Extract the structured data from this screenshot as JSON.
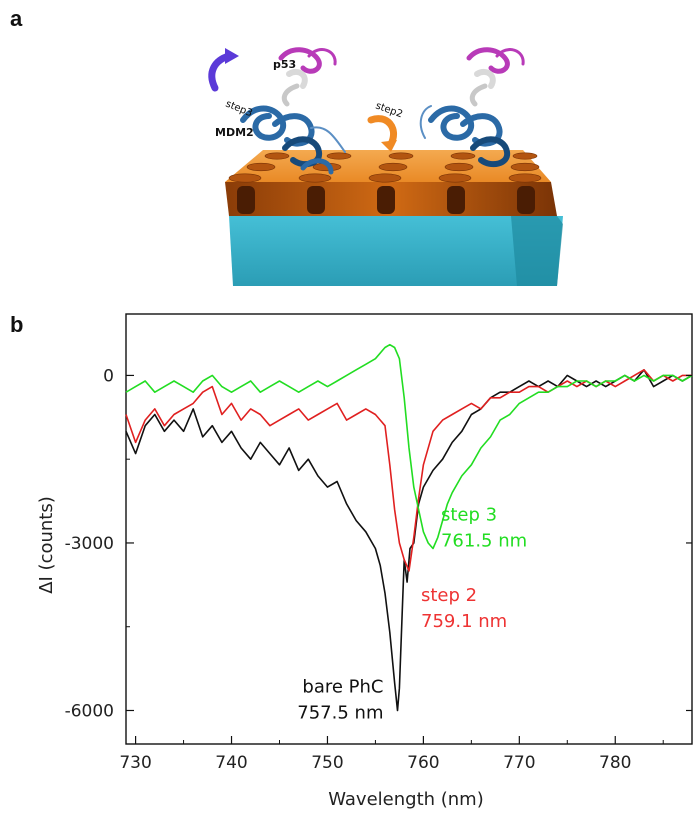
{
  "panels": {
    "a": "a",
    "b": "b"
  },
  "schematic": {
    "labels": {
      "p53": "p53",
      "mdm2": "MDM2",
      "step2": "step2",
      "step3": "step3"
    },
    "colors": {
      "p53": "#b83ab8",
      "mdm2": "#2b6aa6",
      "mdm2_dark": "#174a7a",
      "crystal": "#e8902e",
      "crystal_side": "#c15e12",
      "substrate": "#38afc6",
      "step2_arrow": "#f08a24",
      "step3_arrow": "#5b3ad8"
    }
  },
  "chart_data": {
    "type": "line",
    "xlabel": "Wavelength (nm)",
    "ylabel": "ΔI (counts)",
    "xlim": [
      729,
      788
    ],
    "ylim": [
      -6600,
      1100
    ],
    "xticks": [
      730,
      740,
      750,
      760,
      770,
      780
    ],
    "yticks": [
      0,
      -3000,
      -6000
    ],
    "series": [
      {
        "name": "bare PhC",
        "color": "#111111",
        "x": [
          729,
          730,
          731,
          732,
          733,
          734,
          735,
          736,
          737,
          738,
          739,
          740,
          741,
          742,
          743,
          744,
          745,
          746,
          747,
          748,
          749,
          750,
          751,
          752,
          753,
          754,
          755,
          755.5,
          756,
          756.5,
          757,
          757.3,
          757.5,
          757.8,
          758,
          758.3,
          758.6,
          759,
          759.5,
          760,
          761,
          762,
          763,
          764,
          765,
          766,
          767,
          768,
          769,
          770,
          771,
          772,
          773,
          774,
          775,
          776,
          777,
          778,
          779,
          780,
          781,
          782,
          783,
          784,
          785,
          786,
          787,
          788
        ],
        "y": [
          -1000,
          -1400,
          -900,
          -700,
          -1000,
          -800,
          -1000,
          -600,
          -1100,
          -900,
          -1200,
          -1000,
          -1300,
          -1500,
          -1200,
          -1400,
          -1600,
          -1300,
          -1700,
          -1500,
          -1800,
          -2000,
          -1900,
          -2300,
          -2600,
          -2800,
          -3100,
          -3400,
          -3900,
          -4600,
          -5500,
          -6000,
          -5600,
          -4200,
          -3300,
          -3700,
          -3100,
          -3000,
          -2300,
          -2000,
          -1700,
          -1500,
          -1200,
          -1000,
          -700,
          -600,
          -400,
          -300,
          -300,
          -200,
          -100,
          -200,
          -100,
          -200,
          0,
          -100,
          -200,
          -100,
          -200,
          -100,
          0,
          -100,
          100,
          -200,
          -100,
          0,
          -100,
          0
        ]
      },
      {
        "name": "step 2",
        "color": "#e02020",
        "x": [
          729,
          730,
          731,
          732,
          733,
          734,
          735,
          736,
          737,
          738,
          739,
          740,
          741,
          742,
          743,
          744,
          745,
          746,
          747,
          748,
          749,
          750,
          751,
          752,
          753,
          754,
          755,
          756,
          756.5,
          757,
          757.5,
          758,
          758.5,
          759,
          759.5,
          760,
          761,
          762,
          763,
          764,
          765,
          766,
          767,
          768,
          769,
          770,
          771,
          772,
          773,
          774,
          775,
          776,
          777,
          778,
          779,
          780,
          781,
          782,
          783,
          784,
          785,
          786,
          787,
          788
        ],
        "y": [
          -700,
          -1200,
          -800,
          -600,
          -900,
          -700,
          -600,
          -500,
          -300,
          -200,
          -700,
          -500,
          -800,
          -600,
          -700,
          -900,
          -800,
          -700,
          -600,
          -800,
          -700,
          -600,
          -500,
          -800,
          -700,
          -600,
          -700,
          -900,
          -1600,
          -2400,
          -3000,
          -3300,
          -3500,
          -2900,
          -2200,
          -1600,
          -1000,
          -800,
          -700,
          -600,
          -500,
          -600,
          -400,
          -400,
          -300,
          -300,
          -200,
          -200,
          -300,
          -200,
          -100,
          -200,
          -100,
          -200,
          -100,
          -200,
          -100,
          0,
          100,
          -100,
          0,
          -100,
          0,
          0
        ]
      },
      {
        "name": "step 3",
        "color": "#22dd22",
        "x": [
          729,
          730,
          731,
          732,
          733,
          734,
          735,
          736,
          737,
          738,
          739,
          740,
          741,
          742,
          743,
          744,
          745,
          746,
          747,
          748,
          749,
          750,
          751,
          752,
          753,
          754,
          755,
          756,
          756.5,
          757,
          757.5,
          758,
          758.5,
          759,
          759.5,
          760,
          760.5,
          761,
          761.5,
          762,
          762.5,
          763,
          764,
          765,
          766,
          767,
          768,
          769,
          770,
          771,
          772,
          773,
          774,
          775,
          776,
          777,
          778,
          779,
          780,
          781,
          782,
          783,
          784,
          785,
          786,
          787,
          788
        ],
        "y": [
          -300,
          -200,
          -100,
          -300,
          -200,
          -100,
          -200,
          -300,
          -100,
          0,
          -200,
          -300,
          -200,
          -100,
          -300,
          -200,
          -100,
          -200,
          -300,
          -200,
          -100,
          -200,
          -100,
          0,
          100,
          200,
          300,
          500,
          550,
          500,
          300,
          -400,
          -1300,
          -2000,
          -2400,
          -2800,
          -3000,
          -3100,
          -2900,
          -2600,
          -2300,
          -2100,
          -1800,
          -1600,
          -1300,
          -1100,
          -800,
          -700,
          -500,
          -400,
          -300,
          -300,
          -200,
          -200,
          -100,
          -100,
          -200,
          -100,
          -100,
          0,
          -100,
          0,
          -100,
          0,
          0,
          -100,
          0
        ]
      }
    ],
    "annotations": [
      {
        "series": "step 3",
        "line1": "step 3",
        "line2": "761.5 nm",
        "color": "#22dd22"
      },
      {
        "series": "step 2",
        "line1": "step 2",
        "line2": "759.1 nm",
        "color": "#ee3333"
      },
      {
        "series": "bare PhC",
        "line1": "bare PhC",
        "line2": "757.5 nm",
        "color": "#111111"
      }
    ]
  }
}
